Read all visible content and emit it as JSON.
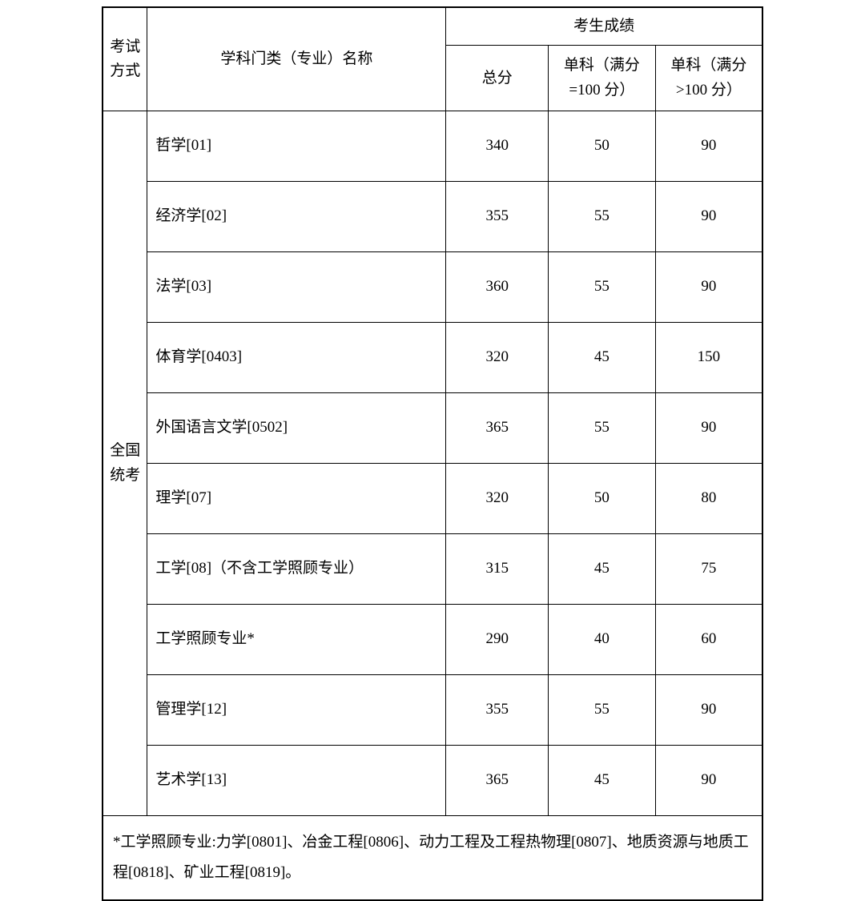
{
  "colors": {
    "border": "#000000",
    "background": "#ffffff",
    "text": "#000000"
  },
  "typography": {
    "font_family": "SimSun",
    "font_size_pt": 14
  },
  "table": {
    "headers": {
      "exam_type": "考试方式",
      "subject": "学科门类（专业）名称",
      "scores_group": "考生成绩",
      "total": "总分",
      "sub_100": "单科（满分=100 分）",
      "sub_gt100": "单科（满分>100 分）"
    },
    "exam_type_label": "全国统考",
    "rows": [
      {
        "subject": "哲学[01]",
        "total": "340",
        "sub100": "50",
        "subgt100": "90"
      },
      {
        "subject": "经济学[02]",
        "total": "355",
        "sub100": "55",
        "subgt100": "90"
      },
      {
        "subject": "法学[03]",
        "total": "360",
        "sub100": "55",
        "subgt100": "90"
      },
      {
        "subject": "体育学[0403]",
        "total": "320",
        "sub100": "45",
        "subgt100": "150"
      },
      {
        "subject": "外国语言文学[0502]",
        "total": "365",
        "sub100": "55",
        "subgt100": "90"
      },
      {
        "subject": "理学[07]",
        "total": "320",
        "sub100": "50",
        "subgt100": "80"
      },
      {
        "subject": "工学[08]（不含工学照顾专业）",
        "total": "315",
        "sub100": "45",
        "subgt100": "75"
      },
      {
        "subject": "工学照顾专业*",
        "total": "290",
        "sub100": "40",
        "subgt100": "60"
      },
      {
        "subject": "管理学[12]",
        "total": "355",
        "sub100": "55",
        "subgt100": "90"
      },
      {
        "subject": "艺术学[13]",
        "total": "365",
        "sub100": "45",
        "subgt100": "90"
      }
    ],
    "footnote": "*工学照顾专业:力学[0801]、冶金工程[0806]、动力工程及工程热物理[0807]、地质资源与地质工程[0818]、矿业工程[0819]。"
  }
}
